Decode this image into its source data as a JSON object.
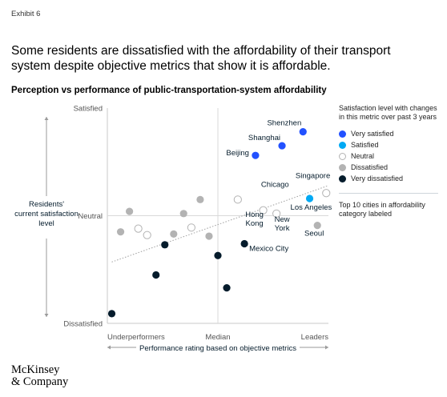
{
  "exhibit_label": "Exhibit 6",
  "headline": "Some residents are dissatisfied with the affordability of their transport system despite objective metrics that show it is affordable.",
  "subtitle": "Perception vs performance of public-transportation-system affordability",
  "legend": {
    "title": "Satisfaction level with changes in this metric over past 3 years",
    "items": [
      {
        "key": "very_satisfied",
        "label": "Very satisfied"
      },
      {
        "key": "satisfied",
        "label": "Satisfied"
      },
      {
        "key": "neutral",
        "label": "Neutral"
      },
      {
        "key": "dissatisfied",
        "label": "Dissatisfied"
      },
      {
        "key": "very_dissatisfied",
        "label": "Very dissatisfied"
      }
    ],
    "note": "Top 10 cities in affordability category labeled"
  },
  "colors": {
    "very_satisfied": "#2251ff",
    "satisfied": "#00a9f4",
    "neutral": "#ffffff",
    "neutral_stroke": "#b3b3b3",
    "dissatisfied": "#b3b3b3",
    "very_dissatisfied": "#051c2c",
    "axis": "#b3b3b3",
    "trend": "#a0a0a0"
  },
  "logo": {
    "line1": "McKinsey",
    "line2": "& Company"
  },
  "chart_data": {
    "type": "scatter",
    "xlabel": "Performance rating based on objective metrics",
    "ylabel": "Residents' current satisfaction level",
    "xlim": [
      0,
      100
    ],
    "ylim": [
      0,
      100
    ],
    "x_ticks": [
      {
        "value": 0,
        "label": "Underperformers"
      },
      {
        "value": 50,
        "label": "Median"
      },
      {
        "value": 100,
        "label": "Leaders"
      }
    ],
    "y_ticks": [
      {
        "value": 100,
        "label": "Satisfied"
      },
      {
        "value": 50,
        "label": "Neutral"
      },
      {
        "value": 0,
        "label": "Dissatisfied"
      }
    ],
    "median_lines": true,
    "trendline": {
      "x": [
        2,
        100
      ],
      "y": [
        28.5,
        64
      ]
    },
    "points": [
      {
        "x": 88.5,
        "y": 89,
        "level": "very_satisfied",
        "label": "Shenzhen"
      },
      {
        "x": 79,
        "y": 82.5,
        "level": "very_satisfied",
        "label": "Shanghai"
      },
      {
        "x": 67,
        "y": 78,
        "level": "very_satisfied",
        "label": "Beijing"
      },
      {
        "x": 91.5,
        "y": 58,
        "level": "satisfied",
        "label": "Los Angeles"
      },
      {
        "x": 99,
        "y": 60.5,
        "level": "neutral",
        "label": "Singapore"
      },
      {
        "x": 59,
        "y": 57.5,
        "level": "neutral",
        "label": "Chicago"
      },
      {
        "x": 70.5,
        "y": 52.5,
        "level": "neutral",
        "label": "Hong Kong"
      },
      {
        "x": 76.5,
        "y": 51,
        "level": "neutral",
        "label": "New York"
      },
      {
        "x": 95,
        "y": 45.5,
        "level": "dissatisfied",
        "label": "Seoul"
      },
      {
        "x": 62,
        "y": 37,
        "level": "very_dissatisfied",
        "label": "Mexico City"
      },
      {
        "x": 10,
        "y": 52,
        "level": "dissatisfied",
        "label": ""
      },
      {
        "x": 6,
        "y": 42.5,
        "level": "dissatisfied",
        "label": ""
      },
      {
        "x": 14,
        "y": 44,
        "level": "neutral",
        "label": ""
      },
      {
        "x": 18,
        "y": 41,
        "level": "neutral",
        "label": ""
      },
      {
        "x": 34.5,
        "y": 51,
        "level": "dissatisfied",
        "label": ""
      },
      {
        "x": 42,
        "y": 57.5,
        "level": "dissatisfied",
        "label": ""
      },
      {
        "x": 30,
        "y": 41.5,
        "level": "dissatisfied",
        "label": ""
      },
      {
        "x": 38,
        "y": 44.5,
        "level": "neutral",
        "label": ""
      },
      {
        "x": 46,
        "y": 40.5,
        "level": "dissatisfied",
        "label": ""
      },
      {
        "x": 26,
        "y": 36.5,
        "level": "very_dissatisfied",
        "label": ""
      },
      {
        "x": 50,
        "y": 31.5,
        "level": "very_dissatisfied",
        "label": ""
      },
      {
        "x": 22,
        "y": 22.5,
        "level": "very_dissatisfied",
        "label": ""
      },
      {
        "x": 54,
        "y": 16.5,
        "level": "very_dissatisfied",
        "label": ""
      },
      {
        "x": 2,
        "y": 4.5,
        "level": "very_dissatisfied",
        "label": ""
      }
    ]
  }
}
